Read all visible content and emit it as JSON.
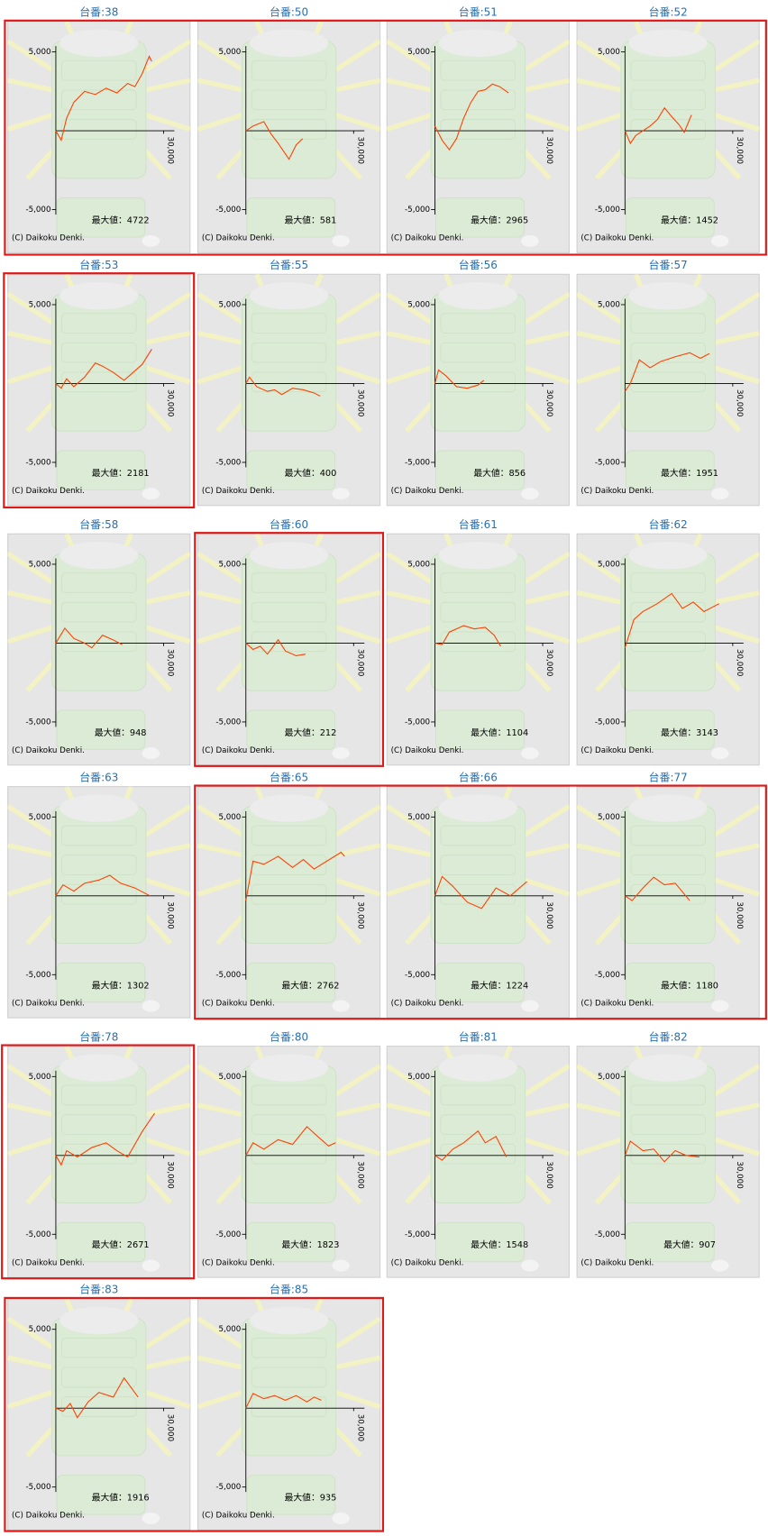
{
  "chart_data": [
    {
      "type": "line",
      "title": "台番:38",
      "color": "#ff4000",
      "xlim": [
        0,
        30000
      ],
      "ylim": [
        -5000,
        5000
      ],
      "xticks": [
        {
          "value": 30000,
          "label": "30,000"
        }
      ],
      "yticks": [
        {
          "value": 5000,
          "label": "5,000"
        },
        {
          "value": -5000,
          "label": "-5,000"
        }
      ],
      "annotation": "最大値：4722",
      "copyright": "(C) Daikoku Denki.",
      "x": [
        0,
        1500,
        3000,
        5000,
        8000,
        11000,
        14000,
        17000,
        20000,
        22000,
        24000,
        26000,
        26700
      ],
      "values": [
        0,
        -600,
        800,
        1800,
        2500,
        2300,
        2700,
        2400,
        3000,
        2800,
        3600,
        4722,
        4400
      ]
    },
    {
      "type": "line",
      "title": "台番:50",
      "color": "#ff4000",
      "xlim": [
        0,
        30000
      ],
      "ylim": [
        -5000,
        5000
      ],
      "xticks": [
        {
          "value": 30000,
          "label": "30,000"
        }
      ],
      "yticks": [
        {
          "value": 5000,
          "label": "5,000"
        },
        {
          "value": -5000,
          "label": "-5,000"
        }
      ],
      "annotation": "最大値：581",
      "copyright": "(C) Daikoku Denki.",
      "x": [
        0,
        2000,
        5000,
        7000,
        9000,
        12000,
        14000,
        15800
      ],
      "values": [
        0,
        300,
        581,
        -200,
        -800,
        -1800,
        -900,
        -500
      ]
    },
    {
      "type": "line",
      "title": "台番:51",
      "color": "#ff4000",
      "xlim": [
        0,
        30000
      ],
      "ylim": [
        -5000,
        5000
      ],
      "xticks": [
        {
          "value": 30000,
          "label": "30,000"
        }
      ],
      "yticks": [
        {
          "value": 5000,
          "label": "5,000"
        },
        {
          "value": -5000,
          "label": "-5,000"
        }
      ],
      "annotation": "最大値：2965",
      "copyright": "(C) Daikoku Denki.",
      "x": [
        0,
        2000,
        4000,
        6000,
        8000,
        10000,
        12000,
        14000,
        16000,
        18000,
        20500
      ],
      "values": [
        300,
        -600,
        -1200,
        -500,
        800,
        1800,
        2500,
        2600,
        2965,
        2800,
        2400
      ]
    },
    {
      "type": "line",
      "title": "台番:52",
      "color": "#ff4000",
      "xlim": [
        0,
        30000
      ],
      "ylim": [
        -5000,
        5000
      ],
      "xticks": [
        {
          "value": 30000,
          "label": "30,000"
        }
      ],
      "yticks": [
        {
          "value": 5000,
          "label": "5,000"
        },
        {
          "value": -5000,
          "label": "-5,000"
        }
      ],
      "annotation": "最大値：1452",
      "copyright": "(C) Daikoku Denki.",
      "x": [
        0,
        1500,
        3000,
        5000,
        7000,
        9000,
        11000,
        13000,
        15000,
        16500,
        18500
      ],
      "values": [
        0,
        -800,
        -300,
        0,
        300,
        700,
        1452,
        900,
        400,
        -100,
        1000
      ]
    },
    {
      "type": "line",
      "title": "台番:53",
      "color": "#ff4000",
      "xlim": [
        0,
        30000
      ],
      "ylim": [
        -5000,
        5000
      ],
      "xticks": [
        {
          "value": 30000,
          "label": "30,000"
        }
      ],
      "yticks": [
        {
          "value": 5000,
          "label": "5,000"
        },
        {
          "value": -5000,
          "label": "-5,000"
        }
      ],
      "annotation": "最大値：2181",
      "copyright": "(C) Daikoku Denki.",
      "x": [
        0,
        1500,
        3000,
        5000,
        8000,
        11000,
        13000,
        16000,
        19000,
        22000,
        24000,
        26700
      ],
      "values": [
        0,
        -300,
        300,
        -200,
        400,
        1300,
        1100,
        700,
        200,
        800,
        1200,
        2181
      ]
    },
    {
      "type": "line",
      "title": "台番:55",
      "color": "#ff4000",
      "xlim": [
        0,
        30000
      ],
      "ylim": [
        -5000,
        5000
      ],
      "xticks": [
        {
          "value": 30000,
          "label": "30,000"
        }
      ],
      "yticks": [
        {
          "value": 5000,
          "label": "5,000"
        },
        {
          "value": -5000,
          "label": "-5,000"
        }
      ],
      "annotation": "最大値：400",
      "copyright": "(C) Daikoku Denki.",
      "x": [
        0,
        1000,
        3000,
        6000,
        8000,
        10000,
        13000,
        16000,
        19000,
        20700
      ],
      "values": [
        0,
        400,
        -200,
        -500,
        -400,
        -700,
        -300,
        -400,
        -600,
        -800
      ]
    },
    {
      "type": "line",
      "title": "台番:56",
      "color": "#ff4000",
      "xlim": [
        0,
        30000
      ],
      "ylim": [
        -5000,
        5000
      ],
      "xticks": [
        {
          "value": 30000,
          "label": "30,000"
        }
      ],
      "yticks": [
        {
          "value": 5000,
          "label": "5,000"
        },
        {
          "value": -5000,
          "label": "-5,000"
        }
      ],
      "annotation": "最大値：856",
      "copyright": "(C) Daikoku Denki.",
      "x": [
        0,
        1000,
        3000,
        6000,
        9000,
        12000,
        13600
      ],
      "values": [
        0,
        856,
        500,
        -200,
        -300,
        -100,
        200
      ]
    },
    {
      "type": "line",
      "title": "台番:57",
      "color": "#ff4000",
      "xlim": [
        0,
        30000
      ],
      "ylim": [
        -5000,
        5000
      ],
      "xticks": [
        {
          "value": 30000,
          "label": "30,000"
        }
      ],
      "yticks": [
        {
          "value": 5000,
          "label": "5,000"
        },
        {
          "value": -5000,
          "label": "-5,000"
        }
      ],
      "annotation": "最大値：1951",
      "copyright": "(C) Daikoku Denki.",
      "x": [
        0,
        1500,
        4000,
        7000,
        10000,
        14000,
        18000,
        21000,
        23500
      ],
      "values": [
        -500,
        0,
        1500,
        1000,
        1400,
        1700,
        1951,
        1600,
        1900
      ]
    },
    {
      "type": "line",
      "title": "台番:58",
      "color": "#ff4000",
      "xlim": [
        0,
        30000
      ],
      "ylim": [
        -5000,
        5000
      ],
      "xticks": [
        {
          "value": 30000,
          "label": "30,000"
        }
      ],
      "yticks": [
        {
          "value": 5000,
          "label": "5,000"
        },
        {
          "value": -5000,
          "label": "-5,000"
        }
      ],
      "annotation": "最大値：948",
      "copyright": "(C) Daikoku Denki.",
      "x": [
        0,
        2500,
        5000,
        8000,
        10000,
        13000,
        16000,
        18500
      ],
      "values": [
        0,
        948,
        300,
        0,
        -300,
        500,
        200,
        -100
      ]
    },
    {
      "type": "line",
      "title": "台番:60",
      "color": "#ff4000",
      "xlim": [
        0,
        30000
      ],
      "ylim": [
        -5000,
        5000
      ],
      "xticks": [
        {
          "value": 30000,
          "label": "30,000"
        }
      ],
      "yticks": [
        {
          "value": 5000,
          "label": "5,000"
        },
        {
          "value": -5000,
          "label": "-5,000"
        }
      ],
      "annotation": "最大値：212",
      "copyright": "(C) Daikoku Denki.",
      "x": [
        0,
        2000,
        4000,
        6000,
        9000,
        11000,
        14000,
        16600
      ],
      "values": [
        0,
        -400,
        -200,
        -700,
        212,
        -500,
        -800,
        -700
      ]
    },
    {
      "type": "line",
      "title": "台番:61",
      "color": "#ff4000",
      "xlim": [
        0,
        30000
      ],
      "ylim": [
        -5000,
        5000
      ],
      "xticks": [
        {
          "value": 30000,
          "label": "30,000"
        }
      ],
      "yticks": [
        {
          "value": 5000,
          "label": "5,000"
        },
        {
          "value": -5000,
          "label": "-5,000"
        }
      ],
      "annotation": "最大値：1104",
      "copyright": "(C) Daikoku Denki.",
      "x": [
        0,
        2000,
        4000,
        8000,
        11000,
        14000,
        16500,
        18300
      ],
      "values": [
        0,
        -100,
        700,
        1104,
        900,
        1000,
        500,
        -200
      ]
    },
    {
      "type": "line",
      "title": "台番:62",
      "color": "#ff4000",
      "xlim": [
        0,
        30000
      ],
      "ylim": [
        -5000,
        5000
      ],
      "xticks": [
        {
          "value": 30000,
          "label": "30,000"
        }
      ],
      "yticks": [
        {
          "value": 5000,
          "label": "5,000"
        },
        {
          "value": -5000,
          "label": "-5,000"
        }
      ],
      "annotation": "最大値：3143",
      "copyright": "(C) Daikoku Denki.",
      "x": [
        0,
        2500,
        5000,
        9000,
        13000,
        16000,
        19000,
        22000,
        26200
      ],
      "values": [
        -300,
        1500,
        2000,
        2500,
        3143,
        2200,
        2600,
        2000,
        2500
      ]
    },
    {
      "type": "line",
      "title": "台番:63",
      "color": "#ff4000",
      "xlim": [
        0,
        30000
      ],
      "ylim": [
        -5000,
        5000
      ],
      "xticks": [
        {
          "value": 30000,
          "label": "30,000"
        }
      ],
      "yticks": [
        {
          "value": 5000,
          "label": "5,000"
        },
        {
          "value": -5000,
          "label": "-5,000"
        }
      ],
      "annotation": "最大値：1302",
      "copyright": "(C) Daikoku Denki.",
      "x": [
        0,
        2000,
        5000,
        8000,
        12000,
        15000,
        18000,
        22000,
        26200
      ],
      "values": [
        0,
        700,
        300,
        800,
        1000,
        1302,
        800,
        500,
        0
      ]
    },
    {
      "type": "line",
      "title": "台番:65",
      "color": "#ff4000",
      "xlim": [
        0,
        30000
      ],
      "ylim": [
        -5000,
        5000
      ],
      "xticks": [
        {
          "value": 30000,
          "label": "30,000"
        }
      ],
      "yticks": [
        {
          "value": 5000,
          "label": "5,000"
        },
        {
          "value": -5000,
          "label": "-5,000"
        }
      ],
      "annotation": "最大値：2762",
      "copyright": "(C) Daikoku Denki.",
      "x": [
        0,
        2000,
        5000,
        9000,
        13000,
        16000,
        19000,
        26500,
        27500
      ],
      "values": [
        -300,
        2200,
        2000,
        2500,
        1800,
        2300,
        1700,
        2762,
        2500
      ]
    },
    {
      "type": "line",
      "title": "台番:66",
      "color": "#ff4000",
      "xlim": [
        0,
        30000
      ],
      "ylim": [
        -5000,
        5000
      ],
      "xticks": [
        {
          "value": 30000,
          "label": "30,000"
        }
      ],
      "yticks": [
        {
          "value": 5000,
          "label": "5,000"
        },
        {
          "value": -5000,
          "label": "-5,000"
        }
      ],
      "annotation": "最大値：1224",
      "copyright": "(C) Daikoku Denki.",
      "x": [
        0,
        2000,
        5000,
        9000,
        13000,
        17000,
        21000,
        25600
      ],
      "values": [
        0,
        1224,
        600,
        -400,
        -800,
        500,
        0,
        900
      ]
    },
    {
      "type": "line",
      "title": "台番:77",
      "color": "#ff4000",
      "xlim": [
        0,
        30000
      ],
      "ylim": [
        -5000,
        5000
      ],
      "xticks": [
        {
          "value": 30000,
          "label": "30,000"
        }
      ],
      "yticks": [
        {
          "value": 5000,
          "label": "5,000"
        },
        {
          "value": -5000,
          "label": "-5,000"
        }
      ],
      "annotation": "最大値：1180",
      "copyright": "(C) Daikoku Denki.",
      "x": [
        0,
        2000,
        5000,
        8000,
        11000,
        14000,
        18000
      ],
      "values": [
        0,
        -300,
        500,
        1180,
        700,
        800,
        -300
      ]
    },
    {
      "type": "line",
      "title": "台番:78",
      "color": "#ff4000",
      "xlim": [
        0,
        30000
      ],
      "ylim": [
        -5000,
        5000
      ],
      "xticks": [
        {
          "value": 30000,
          "label": "30,000"
        }
      ],
      "yticks": [
        {
          "value": 5000,
          "label": "5,000"
        },
        {
          "value": -5000,
          "label": "-5,000"
        }
      ],
      "annotation": "最大値：2671",
      "copyright": "(C) Daikoku Denki.",
      "x": [
        0,
        1500,
        3000,
        6000,
        10000,
        14000,
        17000,
        20000,
        24000,
        27500
      ],
      "values": [
        0,
        -600,
        300,
        -100,
        500,
        800,
        300,
        -100,
        1500,
        2671
      ]
    },
    {
      "type": "line",
      "title": "台番:80",
      "color": "#ff4000",
      "xlim": [
        0,
        30000
      ],
      "ylim": [
        -5000,
        5000
      ],
      "xticks": [
        {
          "value": 30000,
          "label": "30,000"
        }
      ],
      "yticks": [
        {
          "value": 5000,
          "label": "5,000"
        },
        {
          "value": -5000,
          "label": "-5,000"
        }
      ],
      "annotation": "最大値：1823",
      "copyright": "(C) Daikoku Denki.",
      "x": [
        0,
        2000,
        5000,
        9000,
        13000,
        17000,
        20000,
        23000,
        25000
      ],
      "values": [
        0,
        800,
        400,
        1000,
        700,
        1823,
        1200,
        600,
        800
      ]
    },
    {
      "type": "line",
      "title": "台番:81",
      "color": "#ff4000",
      "xlim": [
        0,
        30000
      ],
      "ylim": [
        -5000,
        5000
      ],
      "xticks": [
        {
          "value": 30000,
          "label": "30,000"
        }
      ],
      "yticks": [
        {
          "value": 5000,
          "label": "5,000"
        },
        {
          "value": -5000,
          "label": "-5,000"
        }
      ],
      "annotation": "最大値：1548",
      "copyright": "(C) Daikoku Denki.",
      "x": [
        0,
        2000,
        5000,
        8000,
        12000,
        14000,
        17000,
        19900
      ],
      "values": [
        0,
        -300,
        400,
        800,
        1548,
        800,
        1200,
        -100
      ]
    },
    {
      "type": "line",
      "title": "台番:82",
      "color": "#ff4000",
      "xlim": [
        0,
        30000
      ],
      "ylim": [
        -5000,
        5000
      ],
      "xticks": [
        {
          "value": 30000,
          "label": "30,000"
        }
      ],
      "yticks": [
        {
          "value": 5000,
          "label": "5,000"
        },
        {
          "value": -5000,
          "label": "-5,000"
        }
      ],
      "annotation": "最大値：907",
      "copyright": "(C) Daikoku Denki.",
      "x": [
        0,
        1500,
        5000,
        8000,
        11000,
        14000,
        17000,
        20700
      ],
      "values": [
        0,
        907,
        300,
        400,
        -400,
        300,
        0,
        -100
      ]
    },
    {
      "type": "line",
      "title": "台番:83",
      "color": "#ff4000",
      "xlim": [
        0,
        30000
      ],
      "ylim": [
        -5000,
        5000
      ],
      "xticks": [
        {
          "value": 30000,
          "label": "30,000"
        }
      ],
      "yticks": [
        {
          "value": 5000,
          "label": "5,000"
        },
        {
          "value": -5000,
          "label": "-5,000"
        }
      ],
      "annotation": "最大値：1916",
      "copyright": "(C) Daikoku Denki.",
      "x": [
        0,
        2000,
        4000,
        6000,
        9000,
        12000,
        16000,
        19000,
        22900
      ],
      "values": [
        0,
        -200,
        300,
        -600,
        400,
        1000,
        700,
        1916,
        700
      ]
    },
    {
      "type": "line",
      "title": "台番:85",
      "color": "#ff4000",
      "xlim": [
        0,
        30000
      ],
      "ylim": [
        -5000,
        5000
      ],
      "xticks": [
        {
          "value": 30000,
          "label": "30,000"
        }
      ],
      "yticks": [
        {
          "value": 5000,
          "label": "5,000"
        },
        {
          "value": -5000,
          "label": "-5,000"
        }
      ],
      "annotation": "最大値：935",
      "copyright": "(C) Daikoku Denki.",
      "x": [
        0,
        2000,
        5000,
        8000,
        11000,
        14000,
        17000,
        19000,
        21000
      ],
      "values": [
        0,
        935,
        600,
        800,
        500,
        800,
        400,
        700,
        500
      ]
    }
  ]
}
